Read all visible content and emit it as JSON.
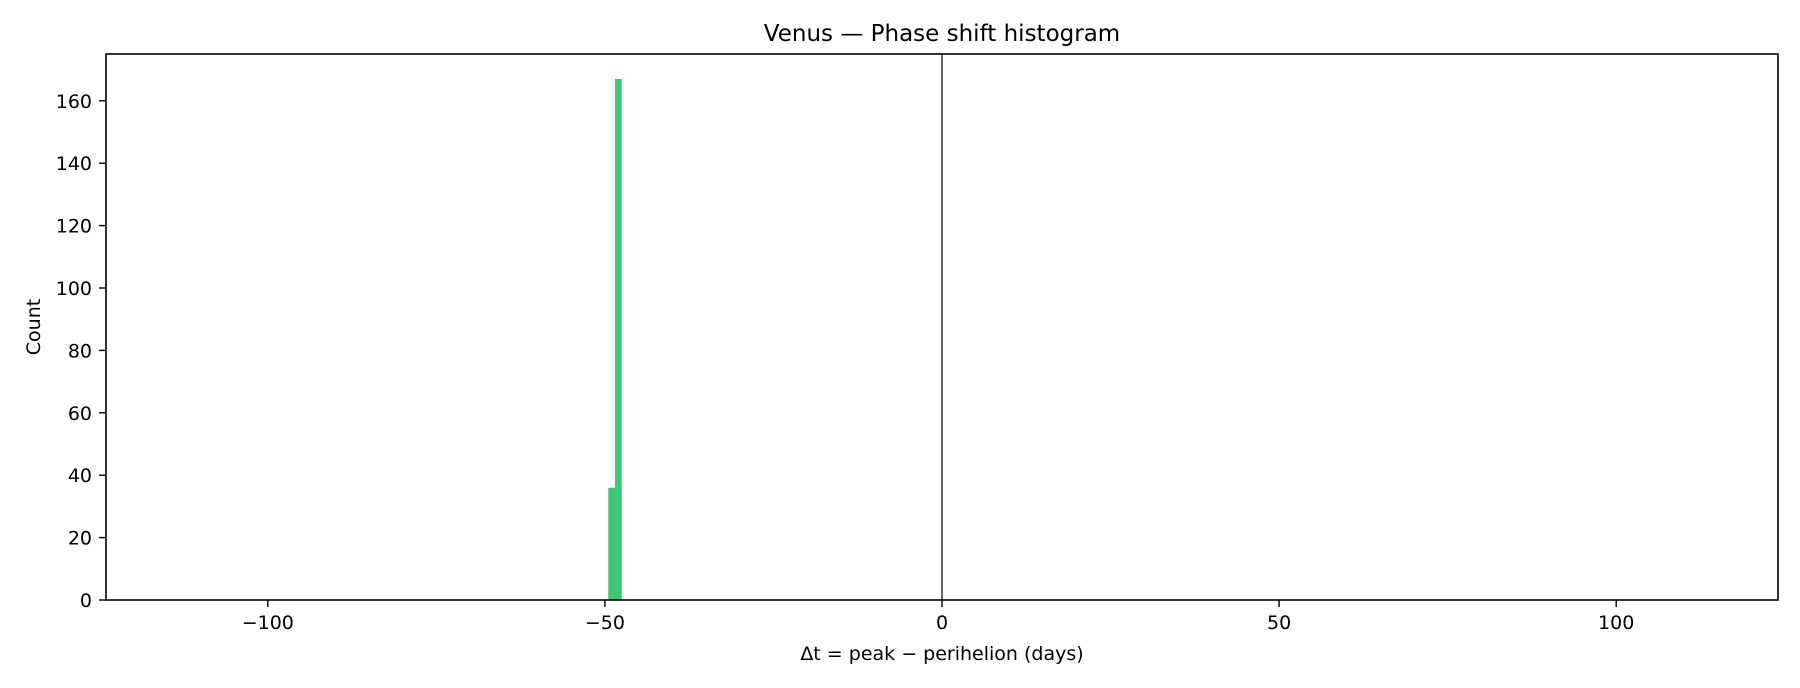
{
  "chart_data": {
    "type": "bar",
    "title": "Venus — Phase shift histogram",
    "xlabel": "Δt = peak − perihelion (days)",
    "ylabel": "Count",
    "xlim": [
      -124,
      124
    ],
    "ylim": [
      0,
      175
    ],
    "x_ticks": [
      -100,
      -50,
      0,
      50,
      100
    ],
    "x_tick_labels": [
      "−100",
      "−50",
      "0",
      "50",
      "100"
    ],
    "y_ticks": [
      0,
      20,
      40,
      60,
      80,
      100,
      120,
      140,
      160
    ],
    "y_tick_labels": [
      "0",
      "20",
      "40",
      "60",
      "80",
      "100",
      "120",
      "140",
      "160"
    ],
    "bins": [
      {
        "x0": -49.5,
        "x1": -48.5,
        "count": 36
      },
      {
        "x0": -48.5,
        "x1": -47.5,
        "count": 167
      }
    ],
    "reference_line_x": 0,
    "bar_color": "#3cc96f",
    "reference_line_color": "#555555",
    "grid": false,
    "legend": "none"
  }
}
